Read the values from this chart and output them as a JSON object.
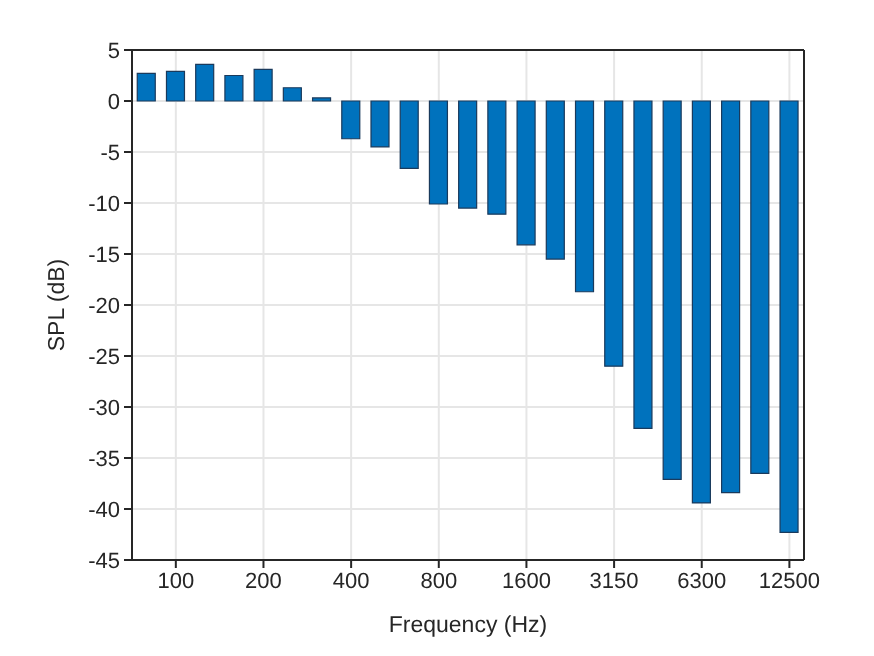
{
  "chart_data": {
    "type": "bar",
    "xlabel": "Frequency (Hz)",
    "ylabel": "SPL (dB)",
    "categories": [
      null,
      "100",
      null,
      null,
      "200",
      null,
      null,
      "400",
      null,
      null,
      "800",
      null,
      null,
      "1600",
      null,
      null,
      "3150",
      null,
      null,
      "6300",
      null,
      null,
      "12500"
    ],
    "values": [
      2.7,
      2.9,
      3.6,
      2.5,
      3.1,
      1.3,
      0.3,
      -3.7,
      -4.5,
      -6.6,
      -10.1,
      -10.5,
      -11.1,
      -14.1,
      -15.5,
      -18.7,
      -26.0,
      -32.1,
      -37.1,
      -39.4,
      -38.4,
      -36.5,
      -42.3
    ],
    "color": "#0072bd",
    "ylim": [
      -45,
      5
    ],
    "yticks": [
      -45,
      -40,
      -35,
      -30,
      -25,
      -20,
      -15,
      -10,
      -5,
      0,
      5
    ],
    "grid": true
  }
}
